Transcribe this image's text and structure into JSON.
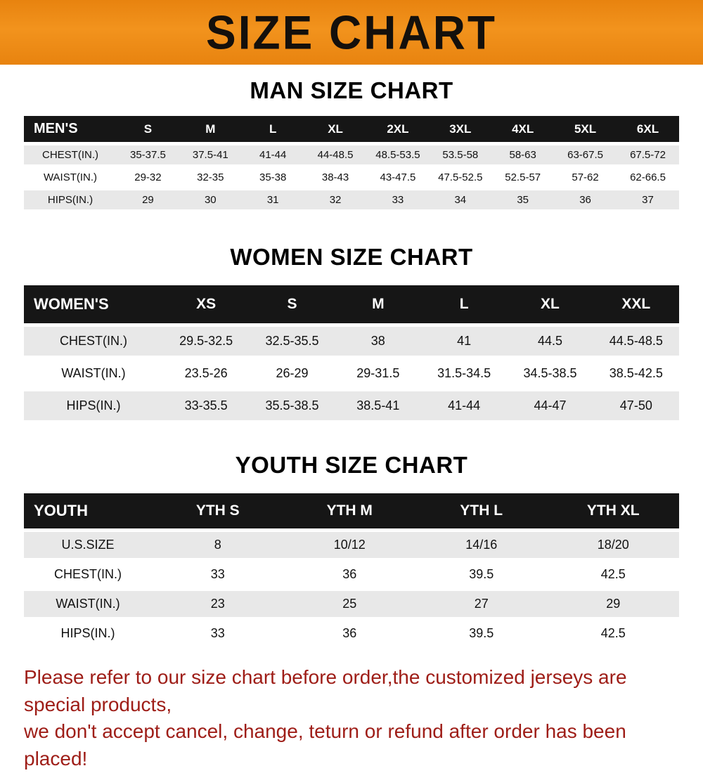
{
  "banner": {
    "title": "SIZE CHART"
  },
  "colors": {
    "banner_orange": "#f2931d",
    "header_black": "#161616",
    "row_gray": "#e8e8e8",
    "footer_red": "#9e1d17"
  },
  "sections": [
    {
      "heading": "MAN SIZE CHART",
      "table": {
        "header": [
          "MEN'S",
          "S",
          "M",
          "L",
          "XL",
          "2XL",
          "3XL",
          "4XL",
          "5XL",
          "6XL"
        ],
        "rows": [
          [
            "CHEST(IN.)",
            "35-37.5",
            "37.5-41",
            "41-44",
            "44-48.5",
            "48.5-53.5",
            "53.5-58",
            "58-63",
            "63-67.5",
            "67.5-72"
          ],
          [
            "WAIST(IN.)",
            "29-32",
            "32-35",
            "35-38",
            "38-43",
            "43-47.5",
            "47.5-52.5",
            "52.5-57",
            "57-62",
            "62-66.5"
          ],
          [
            "HIPS(IN.)",
            "29",
            "30",
            "31",
            "32",
            "33",
            "34",
            "35",
            "36",
            "37"
          ]
        ]
      }
    },
    {
      "heading": "WOMEN SIZE CHART",
      "table": {
        "header": [
          "WOMEN'S",
          "XS",
          "S",
          "M",
          "L",
          "XL",
          "XXL"
        ],
        "rows": [
          [
            "CHEST(IN.)",
            "29.5-32.5",
            "32.5-35.5",
            "38",
            "41",
            "44.5",
            "44.5-48.5"
          ],
          [
            "WAIST(IN.)",
            "23.5-26",
            "26-29",
            "29-31.5",
            "31.5-34.5",
            "34.5-38.5",
            "38.5-42.5"
          ],
          [
            "HIPS(IN.)",
            "33-35.5",
            "35.5-38.5",
            "38.5-41",
            "41-44",
            "44-47",
            "47-50"
          ]
        ]
      }
    },
    {
      "heading": "YOUTH SIZE CHART",
      "table": {
        "header": [
          "YOUTH",
          "YTH S",
          "YTH M",
          "YTH L",
          "YTH XL"
        ],
        "rows": [
          [
            "U.S.SIZE",
            "8",
            "10/12",
            "14/16",
            "18/20"
          ],
          [
            "CHEST(IN.)",
            "33",
            "36",
            "39.5",
            "42.5"
          ],
          [
            "WAIST(IN.)",
            "23",
            "25",
            "27",
            "29"
          ],
          [
            "HIPS(IN.)",
            "33",
            "36",
            "39.5",
            "42.5"
          ]
        ]
      }
    }
  ],
  "footer": {
    "line1": "Please refer to our size chart before order,the customized jerseys are special products,",
    "line2": "we don't accept cancel, change, teturn or refund after order has been placed!"
  }
}
